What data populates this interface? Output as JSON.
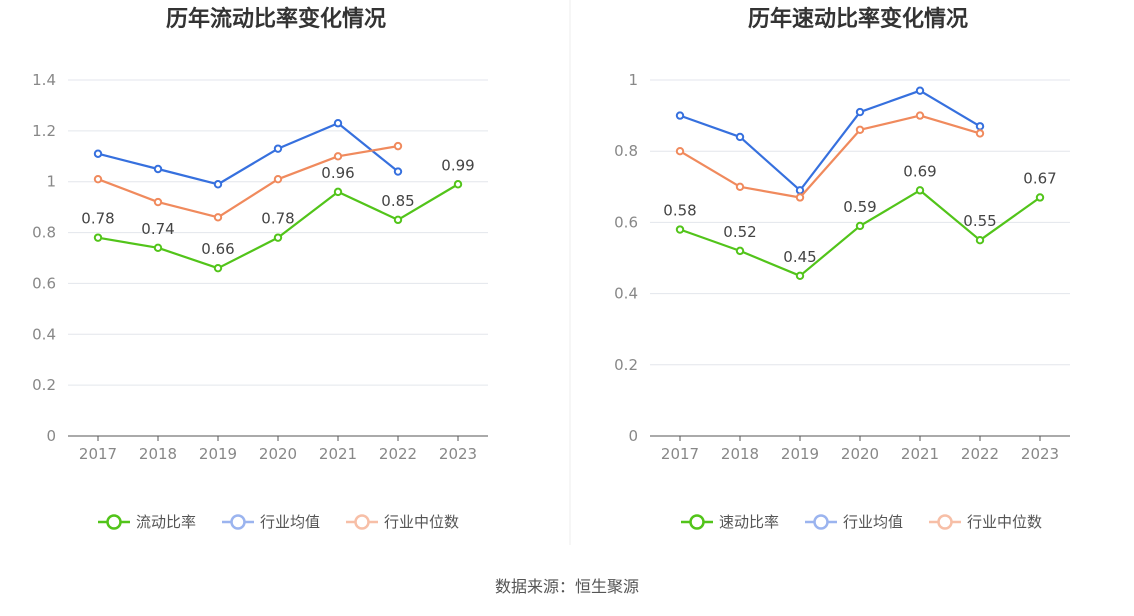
{
  "source_text": "数据来源：恒生聚源",
  "colors": {
    "green": "#52c41a",
    "blue": "#3670de",
    "orange": "#f08a5d",
    "blue_light": "#9bb4ef",
    "orange_light": "#f7bfa7",
    "grid": "#e3e6ec",
    "axis": "#555555"
  },
  "chart_data": [
    {
      "type": "line",
      "title": "历年流动比率变化情况",
      "categories": [
        "2017",
        "2018",
        "2019",
        "2020",
        "2021",
        "2022",
        "2023"
      ],
      "ylim": [
        0,
        1.4
      ],
      "yticks": [
        0,
        0.2,
        0.4,
        0.6,
        0.8,
        1,
        1.2,
        1.4
      ],
      "grid": true,
      "legend_position": "bottom",
      "series": [
        {
          "name": "流动比率",
          "values": [
            0.78,
            0.74,
            0.66,
            0.78,
            0.96,
            0.85,
            0.99
          ],
          "labels": [
            "0.78",
            "0.74",
            "0.66",
            "0.78",
            "0.96",
            "0.85",
            "0.99"
          ]
        },
        {
          "name": "行业均值",
          "values": [
            1.11,
            1.05,
            0.99,
            1.13,
            1.23,
            1.04,
            null
          ]
        },
        {
          "name": "行业中位数",
          "values": [
            1.01,
            0.92,
            0.86,
            1.01,
            1.1,
            1.14,
            null
          ]
        }
      ]
    },
    {
      "type": "line",
      "title": "历年速动比率变化情况",
      "categories": [
        "2017",
        "2018",
        "2019",
        "2020",
        "2021",
        "2022",
        "2023"
      ],
      "ylim": [
        0,
        1
      ],
      "yticks": [
        0,
        0.2,
        0.4,
        0.6,
        0.8,
        1
      ],
      "grid": true,
      "legend_position": "bottom",
      "series": [
        {
          "name": "速动比率",
          "values": [
            0.58,
            0.52,
            0.45,
            0.59,
            0.69,
            0.55,
            0.67
          ],
          "labels": [
            "0.58",
            "0.52",
            "0.45",
            "0.59",
            "0.69",
            "0.55",
            "0.67"
          ]
        },
        {
          "name": "行业均值",
          "values": [
            0.9,
            0.84,
            0.69,
            0.91,
            0.97,
            0.87,
            null
          ]
        },
        {
          "name": "行业中位数",
          "values": [
            0.8,
            0.7,
            0.67,
            0.86,
            0.9,
            0.85,
            null
          ]
        }
      ]
    }
  ]
}
